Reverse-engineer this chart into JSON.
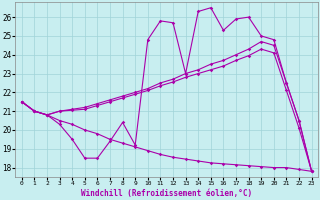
{
  "xlabel": "Windchill (Refroidissement éolien,°C)",
  "xlim": [
    -0.5,
    23.5
  ],
  "ylim": [
    17.5,
    26.8
  ],
  "yticks": [
    18,
    19,
    20,
    21,
    22,
    23,
    24,
    25,
    26
  ],
  "xticks": [
    0,
    1,
    2,
    3,
    4,
    5,
    6,
    7,
    8,
    9,
    10,
    11,
    12,
    13,
    14,
    15,
    16,
    17,
    18,
    19,
    20,
    21,
    22,
    23
  ],
  "bg_color": "#c8eef0",
  "grid_color": "#a0d4d8",
  "line_color": "#aa00aa",
  "xlabel_bg": "#880088",
  "line1_x": [
    0,
    1,
    2,
    3,
    4,
    5,
    6,
    7,
    8,
    9,
    10,
    11,
    12,
    13,
    14,
    15,
    16,
    17,
    18,
    19,
    20,
    21,
    22,
    23
  ],
  "line1_y": [
    21.5,
    21.0,
    20.8,
    20.3,
    19.5,
    18.5,
    18.5,
    19.4,
    20.4,
    19.2,
    24.8,
    25.8,
    25.7,
    23.0,
    26.3,
    26.5,
    25.3,
    25.9,
    26.0,
    25.0,
    24.8,
    22.5,
    20.5,
    17.8
  ],
  "line2_x": [
    0,
    1,
    2,
    3,
    4,
    5,
    6,
    7,
    8,
    9,
    10,
    11,
    12,
    13,
    14,
    15,
    16,
    17,
    18,
    19,
    20,
    21,
    22,
    23
  ],
  "line2_y": [
    21.5,
    21.0,
    20.8,
    21.0,
    21.1,
    21.2,
    21.4,
    21.6,
    21.8,
    22.0,
    22.2,
    22.5,
    22.7,
    23.0,
    23.2,
    23.5,
    23.7,
    24.0,
    24.3,
    24.7,
    24.5,
    22.5,
    20.5,
    17.8
  ],
  "line3_x": [
    0,
    1,
    2,
    3,
    4,
    5,
    6,
    7,
    8,
    9,
    10,
    11,
    12,
    13,
    14,
    15,
    16,
    17,
    18,
    19,
    20,
    21,
    22,
    23
  ],
  "line3_y": [
    21.5,
    21.0,
    20.8,
    21.0,
    21.05,
    21.1,
    21.3,
    21.5,
    21.7,
    21.9,
    22.1,
    22.35,
    22.55,
    22.8,
    23.0,
    23.2,
    23.4,
    23.7,
    23.95,
    24.3,
    24.1,
    22.1,
    20.1,
    17.8
  ],
  "line4_x": [
    0,
    1,
    2,
    3,
    4,
    5,
    6,
    7,
    8,
    9,
    10,
    11,
    12,
    13,
    14,
    15,
    16,
    17,
    18,
    19,
    20,
    21,
    22,
    23
  ],
  "line4_y": [
    21.5,
    21.0,
    20.8,
    20.5,
    20.3,
    20.0,
    19.8,
    19.5,
    19.3,
    19.1,
    18.9,
    18.7,
    18.55,
    18.45,
    18.35,
    18.25,
    18.2,
    18.15,
    18.1,
    18.05,
    18.0,
    18.0,
    17.9,
    17.8
  ]
}
